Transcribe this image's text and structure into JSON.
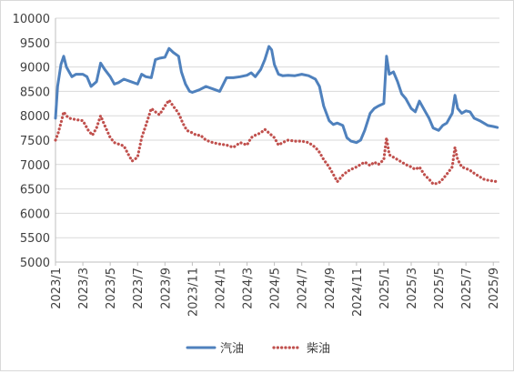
{
  "chart_data": {
    "type": "line",
    "title": "",
    "xlabel": "",
    "ylabel": "",
    "ylim": [
      5000,
      10000
    ],
    "yticks": [
      5000,
      5500,
      6000,
      6500,
      7000,
      7500,
      8000,
      8500,
      9000,
      9500,
      10000
    ],
    "xticks": [
      "2023/1",
      "2023/3",
      "2023/5",
      "2023/7",
      "2023/9",
      "2023/11",
      "2024/1",
      "2024/3",
      "2024/5",
      "2024/7",
      "2024/9",
      "2024/11",
      "2025/1",
      "2025/3",
      "2025/5",
      "2025/7",
      "2025/9"
    ],
    "x_range": [
      "2023/1",
      "2025/9"
    ],
    "grid": "horizontal",
    "legend_position": "bottom",
    "series": [
      {
        "name": "汽油",
        "style": "line",
        "color": "#4f81bd",
        "points": [
          [
            "2023/1",
            7950
          ],
          [
            "2023/1.15",
            8600
          ],
          [
            "2023/1.4",
            9050
          ],
          [
            "2023/1.6",
            9220
          ],
          [
            "2023/1.8",
            9000
          ],
          [
            "2023/2",
            8900
          ],
          [
            "2023/2.2",
            8800
          ],
          [
            "2023/2.5",
            8850
          ],
          [
            "2023/3",
            8850
          ],
          [
            "2023/3.3",
            8800
          ],
          [
            "2023/3.6",
            8600
          ],
          [
            "2023/4",
            8700
          ],
          [
            "2023/4.3",
            9080
          ],
          [
            "2023/4.6",
            8950
          ],
          [
            "2023/5",
            8800
          ],
          [
            "2023/5.3",
            8650
          ],
          [
            "2023/5.6",
            8680
          ],
          [
            "2023/6",
            8750
          ],
          [
            "2023/6.5",
            8700
          ],
          [
            "2023/7",
            8650
          ],
          [
            "2023/7.3",
            8850
          ],
          [
            "2023/7.6",
            8800
          ],
          [
            "2023/8",
            8780
          ],
          [
            "2023/8.3",
            9150
          ],
          [
            "2023/8.6",
            9180
          ],
          [
            "2023/9",
            9200
          ],
          [
            "2023/9.3",
            9380
          ],
          [
            "2023/9.6",
            9300
          ],
          [
            "2023/10",
            9220
          ],
          [
            "2023/10.2",
            8900
          ],
          [
            "2023/10.5",
            8650
          ],
          [
            "2023/10.8",
            8500
          ],
          [
            "2023/11",
            8480
          ],
          [
            "2023/11.5",
            8530
          ],
          [
            "2023/12",
            8600
          ],
          [
            "2023/12.5",
            8550
          ],
          [
            "2024/1",
            8500
          ],
          [
            "2024/1.5",
            8780
          ],
          [
            "2024/2",
            8780
          ],
          [
            "2024/2.5",
            8800
          ],
          [
            "2024/3",
            8830
          ],
          [
            "2024/3.3",
            8880
          ],
          [
            "2024/3.6",
            8800
          ],
          [
            "2024/4",
            8950
          ],
          [
            "2024/4.3",
            9150
          ],
          [
            "2024/4.6",
            9420
          ],
          [
            "2024/4.8",
            9350
          ],
          [
            "2024/5",
            9050
          ],
          [
            "2024/5.3",
            8850
          ],
          [
            "2024/5.6",
            8820
          ],
          [
            "2024/6",
            8830
          ],
          [
            "2024/6.5",
            8820
          ],
          [
            "2024/7",
            8850
          ],
          [
            "2024/7.5",
            8820
          ],
          [
            "2024/8",
            8750
          ],
          [
            "2024/8.3",
            8600
          ],
          [
            "2024/8.6",
            8200
          ],
          [
            "2024/9",
            7900
          ],
          [
            "2024/9.3",
            7820
          ],
          [
            "2024/9.6",
            7850
          ],
          [
            "2024/10",
            7800
          ],
          [
            "2024/10.3",
            7550
          ],
          [
            "2024/10.6",
            7480
          ],
          [
            "2024/11",
            7450
          ],
          [
            "2024/11.3",
            7500
          ],
          [
            "2024/11.6",
            7700
          ],
          [
            "2024/12",
            8050
          ],
          [
            "2024/12.3",
            8150
          ],
          [
            "2024/12.6",
            8200
          ],
          [
            "2025/1",
            8250
          ],
          [
            "2025/1.2",
            9220
          ],
          [
            "2025/1.4",
            8850
          ],
          [
            "2025/1.7",
            8900
          ],
          [
            "2025/2",
            8700
          ],
          [
            "2025/2.3",
            8450
          ],
          [
            "2025/2.6",
            8350
          ],
          [
            "2025/3",
            8150
          ],
          [
            "2025/3.3",
            8080
          ],
          [
            "2025/3.6",
            8300
          ],
          [
            "2025/4",
            8100
          ],
          [
            "2025/4.3",
            7950
          ],
          [
            "2025/4.6",
            7750
          ],
          [
            "2025/5",
            7700
          ],
          [
            "2025/5.3",
            7800
          ],
          [
            "2025/5.6",
            7850
          ],
          [
            "2025/6",
            8050
          ],
          [
            "2025/6.2",
            8420
          ],
          [
            "2025/6.4",
            8150
          ],
          [
            "2025/6.7",
            8050
          ],
          [
            "2025/7",
            8100
          ],
          [
            "2025/7.3",
            8080
          ],
          [
            "2025/7.6",
            7950
          ],
          [
            "2025/8",
            7900
          ],
          [
            "2025/8.3",
            7850
          ],
          [
            "2025/8.6",
            7800
          ],
          [
            "2025/9",
            7780
          ],
          [
            "2025/9.3",
            7760
          ]
        ]
      },
      {
        "name": "柴油",
        "style": "dotted",
        "color": "#c0504d",
        "points": [
          [
            "2023/1",
            7500
          ],
          [
            "2023/1.2",
            7650
          ],
          [
            "2023/1.4",
            7850
          ],
          [
            "2023/1.6",
            8080
          ],
          [
            "2023/1.8",
            8000
          ],
          [
            "2023/2",
            7950
          ],
          [
            "2023/2.5",
            7920
          ],
          [
            "2023/3",
            7900
          ],
          [
            "2023/3.4",
            7700
          ],
          [
            "2023/3.7",
            7600
          ],
          [
            "2023/4",
            7750
          ],
          [
            "2023/4.3",
            8000
          ],
          [
            "2023/4.6",
            7800
          ],
          [
            "2023/5",
            7550
          ],
          [
            "2023/5.3",
            7450
          ],
          [
            "2023/5.6",
            7420
          ],
          [
            "2023/6",
            7380
          ],
          [
            "2023/6.3",
            7220
          ],
          [
            "2023/6.6",
            7070
          ],
          [
            "2023/7",
            7150
          ],
          [
            "2023/7.3",
            7550
          ],
          [
            "2023/7.6",
            7800
          ],
          [
            "2023/8",
            8150
          ],
          [
            "2023/8.3",
            8080
          ],
          [
            "2023/8.6",
            8020
          ],
          [
            "2023/9",
            8200
          ],
          [
            "2023/9.3",
            8320
          ],
          [
            "2023/9.6",
            8200
          ],
          [
            "2023/10",
            8050
          ],
          [
            "2023/10.3",
            7850
          ],
          [
            "2023/10.6",
            7700
          ],
          [
            "2023/11",
            7650
          ],
          [
            "2023/11.3",
            7600
          ],
          [
            "2023/11.6",
            7600
          ],
          [
            "2023/12",
            7500
          ],
          [
            "2023/12.5",
            7450
          ],
          [
            "2024/1",
            7420
          ],
          [
            "2024/1.5",
            7400
          ],
          [
            "2024/2",
            7350
          ],
          [
            "2024/2.5",
            7450
          ],
          [
            "2024/3",
            7400
          ],
          [
            "2024/3.3",
            7550
          ],
          [
            "2024/3.6",
            7600
          ],
          [
            "2024/4",
            7650
          ],
          [
            "2024/4.3",
            7720
          ],
          [
            "2024/4.6",
            7650
          ],
          [
            "2024/5",
            7550
          ],
          [
            "2024/5.3",
            7400
          ],
          [
            "2024/5.6",
            7450
          ],
          [
            "2024/6",
            7500
          ],
          [
            "2024/6.5",
            7480
          ],
          [
            "2024/7",
            7480
          ],
          [
            "2024/7.5",
            7450
          ],
          [
            "2024/8",
            7350
          ],
          [
            "2024/8.3",
            7250
          ],
          [
            "2024/8.6",
            7100
          ],
          [
            "2024/9",
            6950
          ],
          [
            "2024/9.3",
            6800
          ],
          [
            "2024/9.6",
            6650
          ],
          [
            "2024/10",
            6780
          ],
          [
            "2024/10.3",
            6850
          ],
          [
            "2024/10.6",
            6900
          ],
          [
            "2024/11",
            6950
          ],
          [
            "2024/11.3",
            7000
          ],
          [
            "2024/11.6",
            7050
          ],
          [
            "2024/12",
            6980
          ],
          [
            "2024/12.3",
            7050
          ],
          [
            "2024/12.6",
            7000
          ],
          [
            "2025/1",
            7100
          ],
          [
            "2025/1.2",
            7550
          ],
          [
            "2025/1.4",
            7200
          ],
          [
            "2025/1.7",
            7150
          ],
          [
            "2025/2",
            7100
          ],
          [
            "2025/2.3",
            7050
          ],
          [
            "2025/2.6",
            7000
          ],
          [
            "2025/3",
            6950
          ],
          [
            "2025/3.3",
            6900
          ],
          [
            "2025/3.6",
            6950
          ],
          [
            "2025/4",
            6780
          ],
          [
            "2025/4.3",
            6700
          ],
          [
            "2025/4.6",
            6600
          ],
          [
            "2025/5",
            6620
          ],
          [
            "2025/5.3",
            6700
          ],
          [
            "2025/5.6",
            6800
          ],
          [
            "2025/6",
            6950
          ],
          [
            "2025/6.2",
            7350
          ],
          [
            "2025/6.4",
            7100
          ],
          [
            "2025/6.7",
            6950
          ],
          [
            "2025/7",
            6920
          ],
          [
            "2025/7.3",
            6880
          ],
          [
            "2025/7.6",
            6820
          ],
          [
            "2025/8",
            6750
          ],
          [
            "2025/8.3",
            6700
          ],
          [
            "2025/8.6",
            6680
          ],
          [
            "2025/9",
            6660
          ],
          [
            "2025/9.3",
            6650
          ]
        ]
      }
    ]
  }
}
